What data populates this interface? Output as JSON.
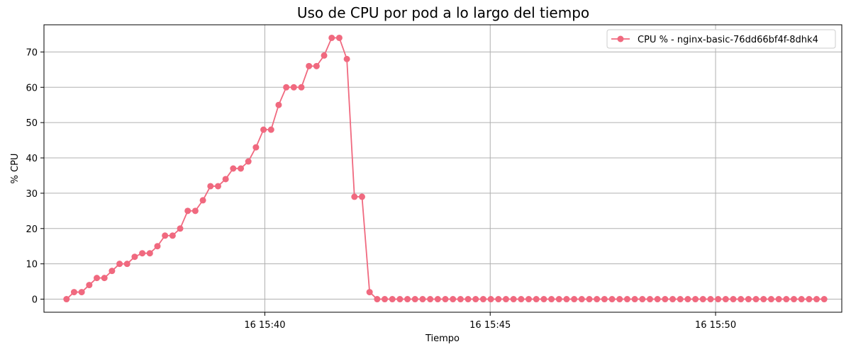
{
  "chart_data": {
    "type": "line",
    "title": "Uso de CPU por pod a lo largo del tiempo",
    "xlabel": "Tiempo",
    "ylabel": "% CPU",
    "x_ticks": [
      {
        "minute": 40,
        "label": "16 15:40"
      },
      {
        "minute": 45,
        "label": "16 15:45"
      },
      {
        "minute": 50,
        "label": "16 15:50"
      }
    ],
    "y_ticks": [
      0,
      10,
      20,
      30,
      40,
      50,
      60,
      70
    ],
    "xlim": [
      35.1,
      52.8
    ],
    "ylim": [
      -3.7,
      77.7
    ],
    "grid": true,
    "legend_position": "top-right",
    "series": [
      {
        "name": "CPU % - nginx-basic-76dd66bf4f-8dhk4",
        "color": "#f0697f",
        "x_start_minute": 35.6,
        "x_step_minute": 0.1681,
        "values": [
          0,
          2,
          2,
          4,
          6,
          6,
          8,
          10,
          10,
          12,
          13,
          13,
          15,
          18,
          18,
          20,
          25,
          25,
          28,
          32,
          32,
          34,
          37,
          37,
          39,
          43,
          48,
          48,
          55,
          60,
          60,
          60,
          66,
          66,
          69,
          74,
          74,
          68,
          29,
          29,
          2,
          0,
          0,
          0,
          0,
          0,
          0,
          0,
          0,
          0,
          0,
          0,
          0,
          0,
          0,
          0,
          0,
          0,
          0,
          0,
          0,
          0,
          0,
          0,
          0,
          0,
          0,
          0,
          0,
          0,
          0,
          0,
          0,
          0,
          0,
          0,
          0,
          0,
          0,
          0,
          0,
          0,
          0,
          0,
          0,
          0,
          0,
          0,
          0,
          0,
          0,
          0,
          0,
          0,
          0,
          0,
          0,
          0,
          0,
          0,
          0
        ]
      }
    ]
  }
}
